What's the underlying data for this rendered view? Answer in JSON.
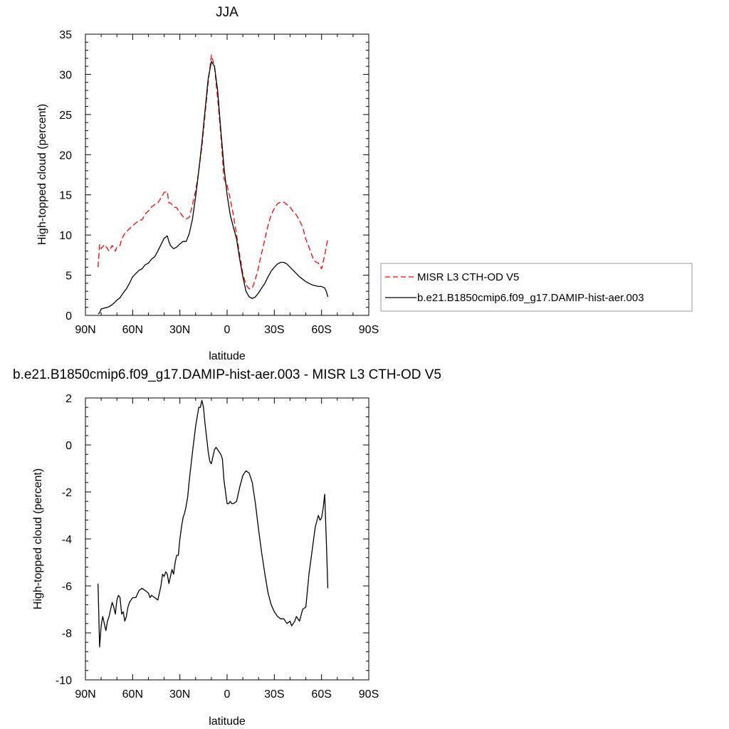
{
  "chart_data": [
    {
      "type": "line",
      "title": "JJA",
      "xlabel": "latitude",
      "ylabel": "High-topped cloud (percent)",
      "xlim": [
        90,
        -90
      ],
      "ylim": [
        0,
        35
      ],
      "xticks": [
        90,
        60,
        30,
        0,
        -30,
        -60,
        -90
      ],
      "xtick_labels": [
        "90N",
        "60N",
        "30N",
        "0",
        "30S",
        "60S",
        "90S"
      ],
      "yticks": [
        0,
        5,
        10,
        15,
        20,
        25,
        30,
        35
      ],
      "ytick_labels": [
        "0",
        "5",
        "10",
        "15",
        "20",
        "25",
        "30",
        "35"
      ],
      "grid": false,
      "legend_position": "right",
      "series": [
        {
          "name": "MISR L3 CTH-OD V5",
          "color": "#ff0000",
          "dash": "dashed",
          "x": [
            82,
            81,
            80,
            78,
            77,
            75,
            73,
            71,
            70,
            68,
            67,
            65,
            62,
            58,
            56,
            54,
            52,
            50,
            48,
            46,
            44,
            42,
            40,
            38,
            37,
            36,
            34,
            32,
            30,
            28,
            26,
            24,
            22,
            20,
            18,
            16,
            14,
            12,
            10,
            8,
            6,
            4,
            2,
            0,
            -2,
            -4,
            -6,
            -8,
            -10,
            -12,
            -14,
            -16,
            -18,
            -20,
            -22,
            -24,
            -26,
            -28,
            -30,
            -32,
            -34,
            -36,
            -38,
            -40,
            -42,
            -44,
            -46,
            -48,
            -50,
            -52,
            -54,
            -56,
            -58,
            -60,
            -62,
            -63,
            -64
          ],
          "y": [
            6.0,
            8.8,
            8.3,
            8.8,
            8.6,
            8.0,
            8.7,
            8.0,
            8.5,
            8.7,
            9.5,
            10.2,
            10.8,
            11.5,
            11.8,
            11.9,
            12.6,
            13.0,
            13.5,
            13.8,
            14.0,
            14.6,
            15.3,
            15.4,
            14.0,
            14.0,
            13.5,
            13.4,
            12.8,
            12.3,
            12.0,
            12.2,
            13.8,
            15.5,
            18.0,
            21.0,
            25.0,
            29.0,
            32.4,
            31.0,
            27.0,
            22.5,
            17.0,
            16.2,
            14.5,
            12.5,
            10.0,
            7.5,
            5.2,
            3.8,
            3.3,
            3.4,
            4.5,
            6.0,
            7.8,
            9.5,
            11.2,
            12.5,
            13.3,
            13.9,
            14.1,
            14.1,
            13.8,
            13.5,
            12.9,
            12.5,
            11.8,
            11.0,
            9.5,
            8.5,
            7.4,
            6.7,
            6.5,
            5.8,
            7.5,
            8.5,
            9.6
          ]
        },
        {
          "name": "b.e21.B1850cmip6.f09_g17.DAMIP-hist-aer.003",
          "color": "#000000",
          "dash": "solid",
          "x": [
            82,
            81,
            80,
            78,
            76,
            74,
            72,
            70,
            68,
            66,
            64,
            62,
            60,
            58,
            56,
            54,
            52,
            50,
            48,
            46,
            44,
            42,
            40,
            38,
            37,
            36,
            34,
            32,
            30,
            28,
            26,
            24,
            22,
            20,
            18,
            16,
            14,
            12,
            10,
            8,
            6,
            4,
            2,
            0,
            -2,
            -4,
            -6,
            -8,
            -10,
            -12,
            -14,
            -16,
            -18,
            -20,
            -22,
            -24,
            -26,
            -28,
            -30,
            -32,
            -34,
            -36,
            -38,
            -40,
            -42,
            -44,
            -46,
            -48,
            -50,
            -52,
            -54,
            -56,
            -58,
            -60,
            -62,
            -63,
            -64
          ],
          "y": [
            0.2,
            0.3,
            0.8,
            0.9,
            1.0,
            1.2,
            1.5,
            1.9,
            2.2,
            2.8,
            3.3,
            4.0,
            4.8,
            5.2,
            5.6,
            5.8,
            6.3,
            6.5,
            7.0,
            7.3,
            8.0,
            8.8,
            9.6,
            9.9,
            9.2,
            8.7,
            8.3,
            8.5,
            8.9,
            9.2,
            9.2,
            10.2,
            12.0,
            14.8,
            18.0,
            21.5,
            25.5,
            29.5,
            31.6,
            31.0,
            28.0,
            23.0,
            18.5,
            15.0,
            12.5,
            11.0,
            9.5,
            7.0,
            4.8,
            3.0,
            2.3,
            2.1,
            2.3,
            2.8,
            3.4,
            4.0,
            4.8,
            5.5,
            6.0,
            6.4,
            6.6,
            6.6,
            6.4,
            6.0,
            5.6,
            5.2,
            4.8,
            4.5,
            4.2,
            4.0,
            3.8,
            3.7,
            3.6,
            3.6,
            3.4,
            3.0,
            2.3
          ]
        }
      ]
    },
    {
      "type": "line",
      "title": "b.e21.B1850cmip6.f09_g17.DAMIP-hist-aer.003 - MISR L3 CTH-OD V5",
      "xlabel": "latitude",
      "ylabel": "High-topped cloud (percent)",
      "xlim": [
        90,
        -90
      ],
      "ylim": [
        -10,
        2
      ],
      "xticks": [
        90,
        60,
        30,
        0,
        -30,
        -60,
        -90
      ],
      "xtick_labels": [
        "90N",
        "60N",
        "30N",
        "0",
        "30S",
        "60S",
        "90S"
      ],
      "yticks": [
        -10,
        -8,
        -6,
        -4,
        -2,
        0,
        2
      ],
      "ytick_labels": [
        "-10",
        "-8",
        "-6",
        "-4",
        "-2",
        "0",
        "2"
      ],
      "grid": false,
      "series": [
        {
          "color": "#000000",
          "dash": "solid",
          "x": [
            82,
            81,
            80,
            79,
            78,
            77,
            76,
            75,
            74,
            73,
            72,
            71,
            70,
            69,
            68,
            67,
            66,
            65,
            64,
            63,
            62,
            60,
            58,
            56,
            54,
            52,
            50,
            49,
            48,
            46,
            44,
            43,
            42,
            41,
            40,
            39,
            38,
            37,
            36,
            35,
            34,
            33,
            32,
            31,
            30,
            29,
            28,
            27,
            26,
            25,
            24,
            22,
            20,
            18,
            17,
            16,
            15,
            14,
            13,
            12,
            11,
            10,
            9,
            8,
            7,
            6,
            5,
            4,
            3,
            2,
            1,
            0,
            -1,
            -2,
            -3,
            -4,
            -6,
            -8,
            -10,
            -12,
            -14,
            -16,
            -18,
            -20,
            -22,
            -24,
            -26,
            -28,
            -30,
            -32,
            -34,
            -36,
            -38,
            -40,
            -41,
            -42,
            -43,
            -44,
            -46,
            -48,
            -50,
            -52,
            -54,
            -56,
            -58,
            -59,
            -60,
            -61,
            -62,
            -63,
            -64
          ],
          "y": [
            -5.9,
            -8.6,
            -7.7,
            -7.3,
            -7.6,
            -7.9,
            -7.5,
            -7.3,
            -7.0,
            -6.7,
            -6.9,
            -7.2,
            -6.6,
            -6.4,
            -6.5,
            -7.2,
            -7.1,
            -7.5,
            -7.3,
            -6.9,
            -6.7,
            -6.5,
            -6.5,
            -6.2,
            -6.1,
            -6.2,
            -6.3,
            -6.5,
            -6.4,
            -6.5,
            -6.6,
            -6.3,
            -6.0,
            -5.5,
            -5.6,
            -5.4,
            -5.5,
            -5.9,
            -5.6,
            -5.3,
            -5.5,
            -5.0,
            -4.7,
            -4.7,
            -4.0,
            -3.5,
            -3.1,
            -2.9,
            -2.6,
            -2.2,
            -1.5,
            -0.3,
            0.8,
            1.6,
            1.6,
            1.9,
            1.6,
            0.9,
            0.3,
            -0.3,
            -0.7,
            -0.8,
            -0.5,
            -0.2,
            -0.1,
            -0.2,
            -0.3,
            -0.4,
            -0.6,
            -1.5,
            -2.0,
            -2.5,
            -2.5,
            -2.4,
            -2.5,
            -2.5,
            -2.4,
            -1.8,
            -1.3,
            -1.1,
            -1.2,
            -1.6,
            -2.5,
            -3.6,
            -4.6,
            -5.5,
            -6.3,
            -6.8,
            -7.1,
            -7.3,
            -7.4,
            -7.4,
            -7.6,
            -7.5,
            -7.7,
            -7.6,
            -7.5,
            -7.3,
            -7.5,
            -7.0,
            -6.9,
            -5.5,
            -4.5,
            -3.5,
            -3.0,
            -3.2,
            -3.1,
            -2.7,
            -2.1,
            -4.0,
            -6.1
          ]
        }
      ]
    }
  ]
}
